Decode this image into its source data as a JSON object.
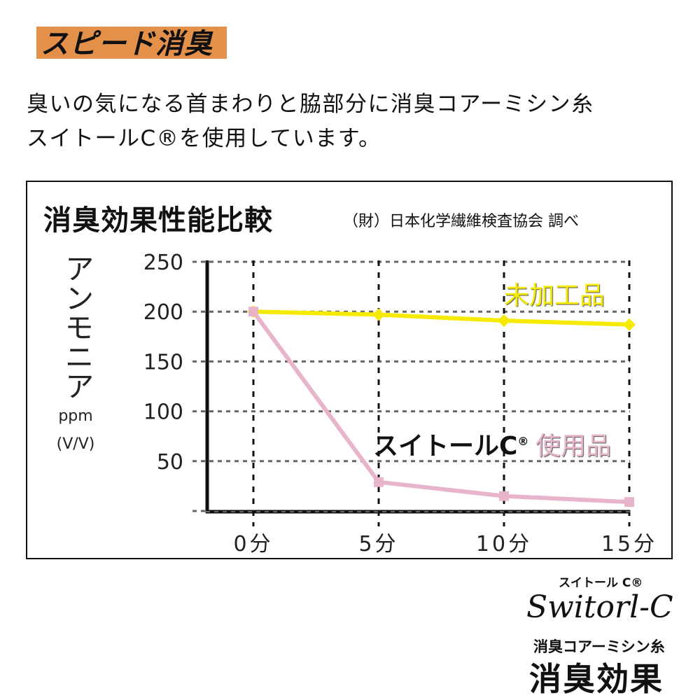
{
  "header": {
    "badge": "スピード消臭"
  },
  "intro": {
    "line1": "臭いの気になる首まわりと脇部分に消臭コアーミシン糸",
    "line2": "スイトールC®を使用しています。"
  },
  "chart_data": {
    "type": "line",
    "title": "消臭効果性能比較",
    "source": "（財）日本化学繊維検査協会 調べ",
    "ylabel": "アンモニア",
    "yunit1": "ppm",
    "yunit2": "(V/V)",
    "xlabel": "",
    "categories": [
      "0分",
      "5分",
      "10分",
      "15分"
    ],
    "x": [
      0,
      5,
      10,
      15
    ],
    "ylim": [
      0,
      250
    ],
    "yticks": [
      "250",
      "200",
      "150",
      "100",
      "50"
    ],
    "grid": true,
    "series": [
      {
        "name": "未加工品",
        "color": "#f5ea00",
        "marker": "diamond",
        "values": [
          200,
          197,
          191,
          187
        ]
      },
      {
        "name": "使用品",
        "brand": "スイトールC",
        "brand_mark": "®",
        "color": "#e8b4cc",
        "marker": "square",
        "values": [
          200,
          29,
          15,
          9
        ]
      }
    ]
  },
  "logo": {
    "kana": "スイトール C®",
    "script": "Switorl-C",
    "sub": "消臭コアーミシン糸",
    "main": "消臭効果"
  }
}
